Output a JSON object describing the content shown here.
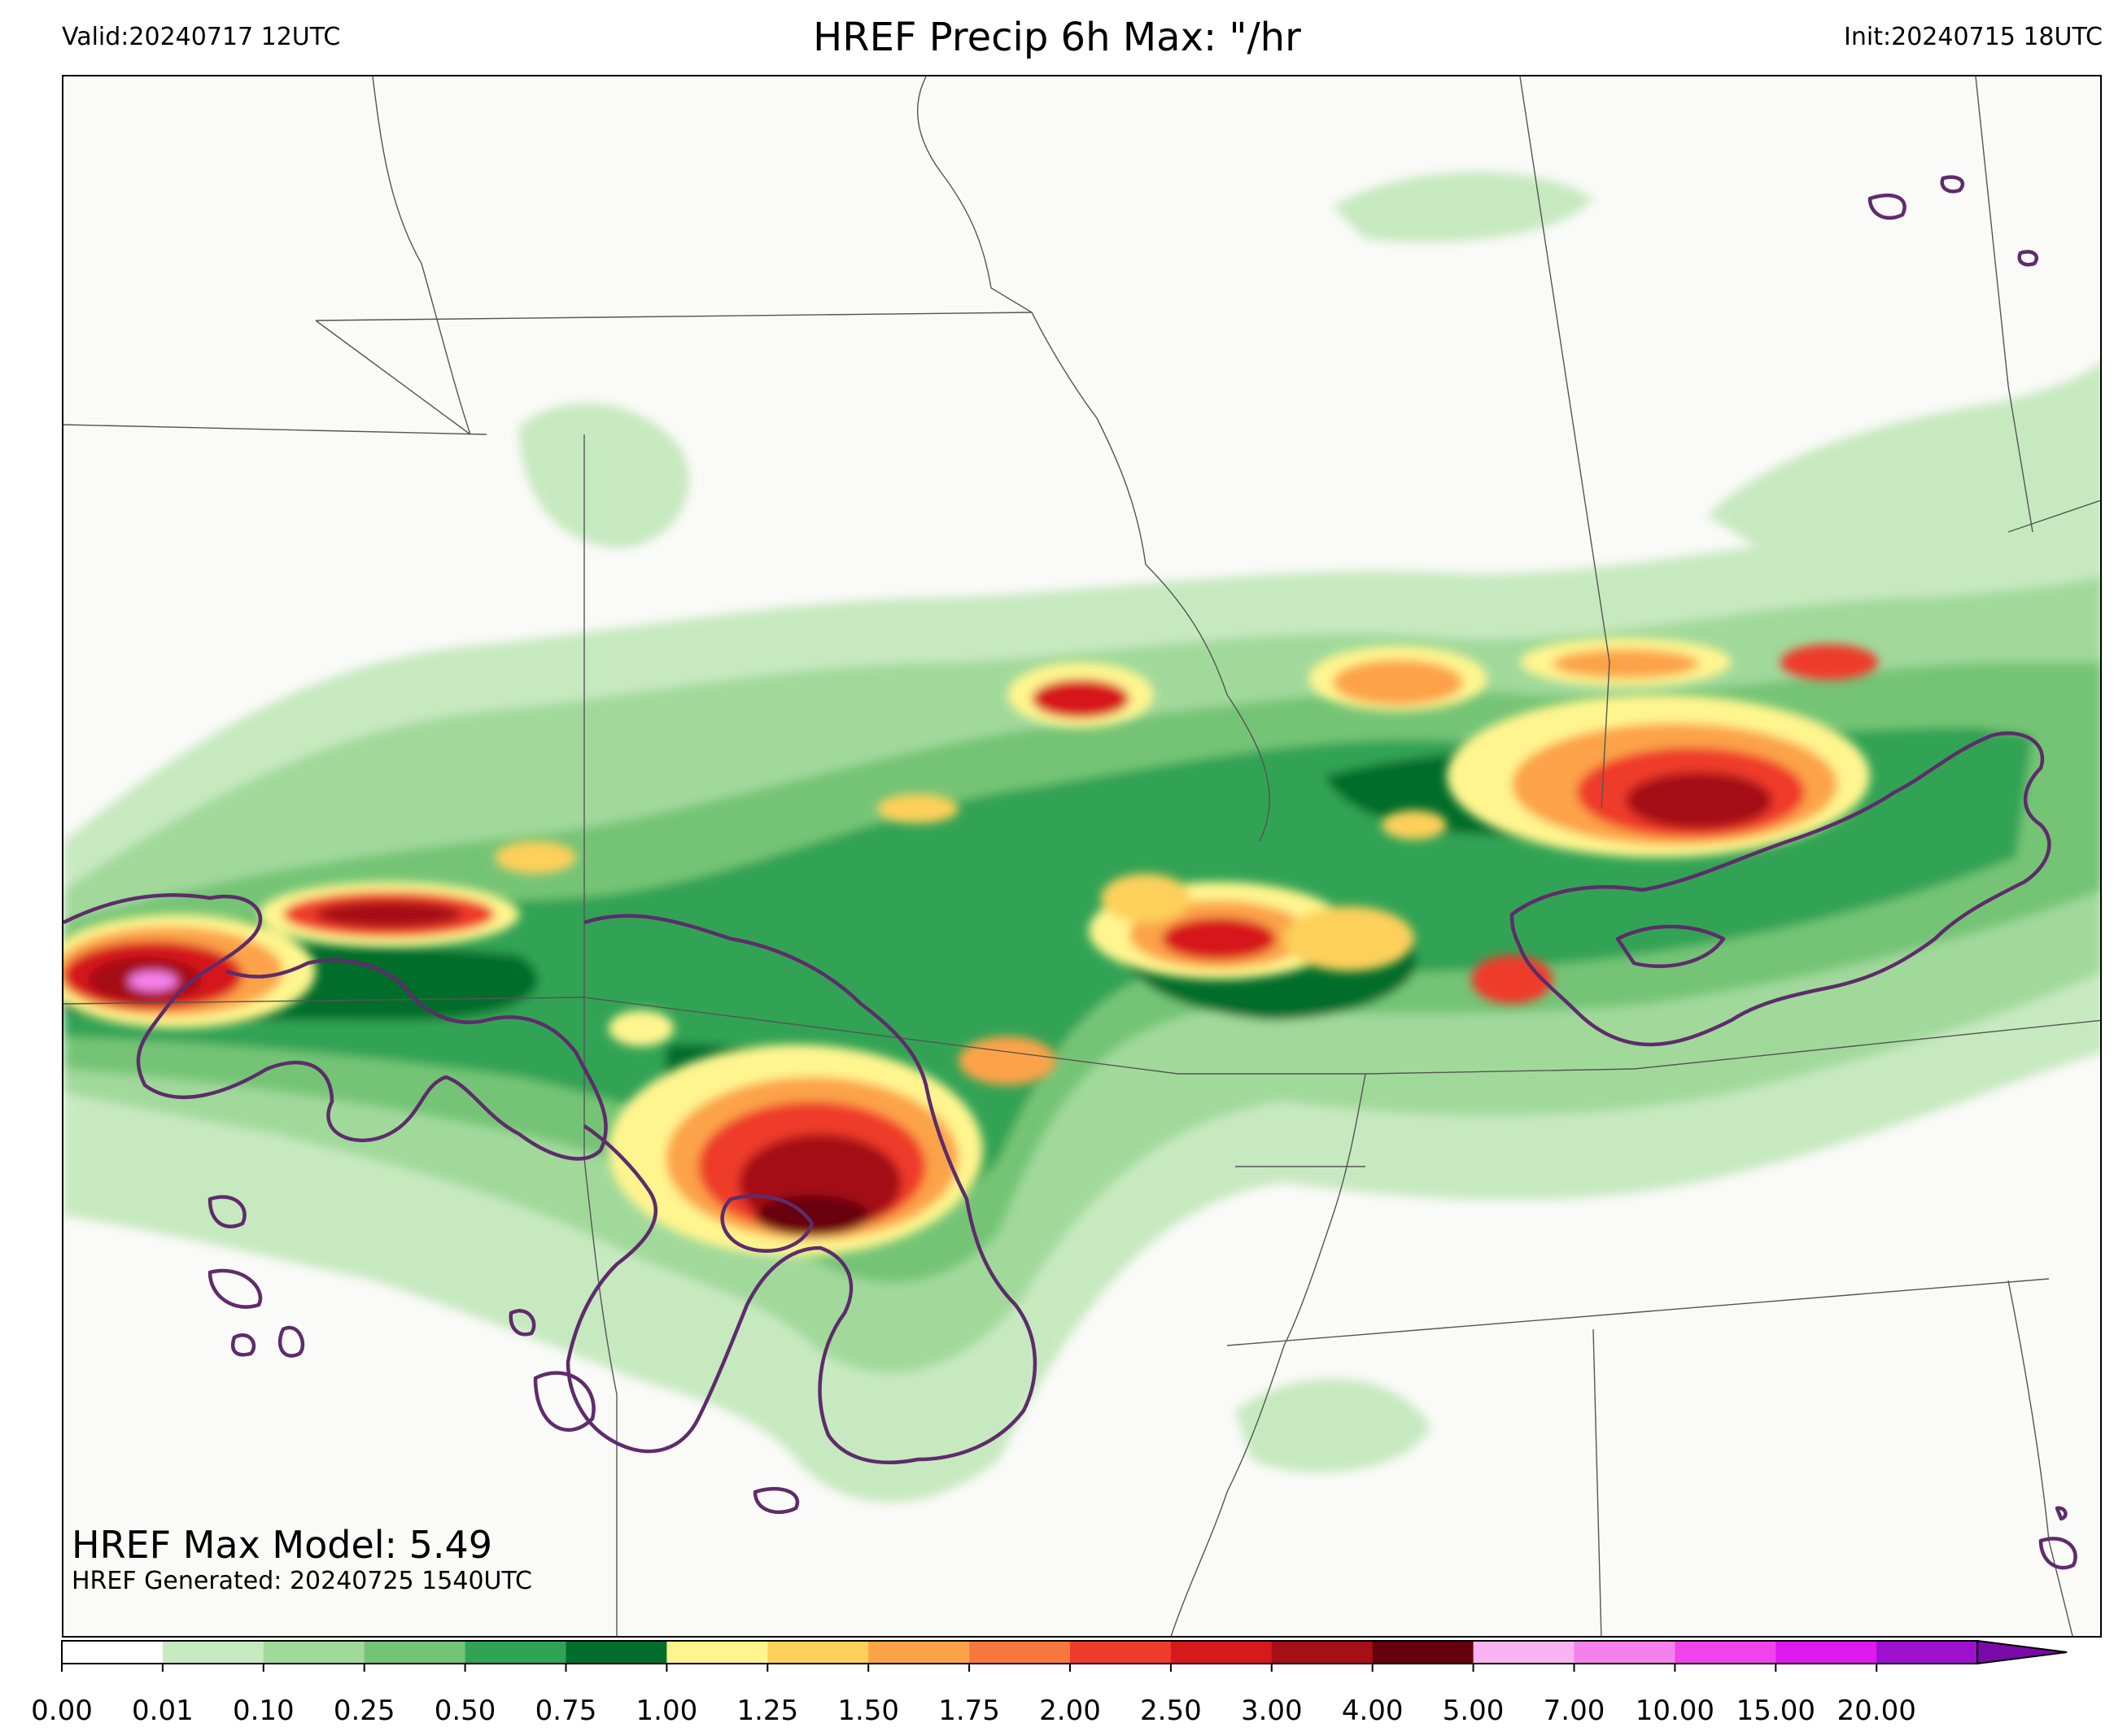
{
  "header": {
    "valid": "Valid:20240717 12UTC",
    "title": "HREF Precip 6h Max: \"/hr",
    "init": "Init:20240715 18UTC"
  },
  "annotation": {
    "max_model": "HREF Max Model: 5.49",
    "generated": "HREF Generated: 20240725 1540UTC"
  },
  "colorbar": {
    "ticks": [
      "0.00",
      "0.01",
      "0.10",
      "0.25",
      "0.50",
      "0.75",
      "1.00",
      "1.25",
      "1.50",
      "1.75",
      "2.00",
      "2.50",
      "3.00",
      "4.00",
      "5.00",
      "7.00",
      "10.00",
      "15.00",
      "20.00"
    ],
    "colors": [
      "#ffffff",
      "#c7e9c0",
      "#a1d99b",
      "#74c476",
      "#31a354",
      "#006d2c",
      "#fff58f",
      "#fdd05a",
      "#fca349",
      "#f7783d",
      "#ef3b2c",
      "#d7191c",
      "#a50f15",
      "#67000d",
      "#f8b3f0",
      "#f582ec",
      "#f043eb",
      "#dd19ee",
      "#9e10d0"
    ],
    "extend_color": "#7a0aa8"
  },
  "map": {
    "background_color": "#fafaf8",
    "outline_color": "#5e2c6b",
    "border_color": "#555555"
  }
}
